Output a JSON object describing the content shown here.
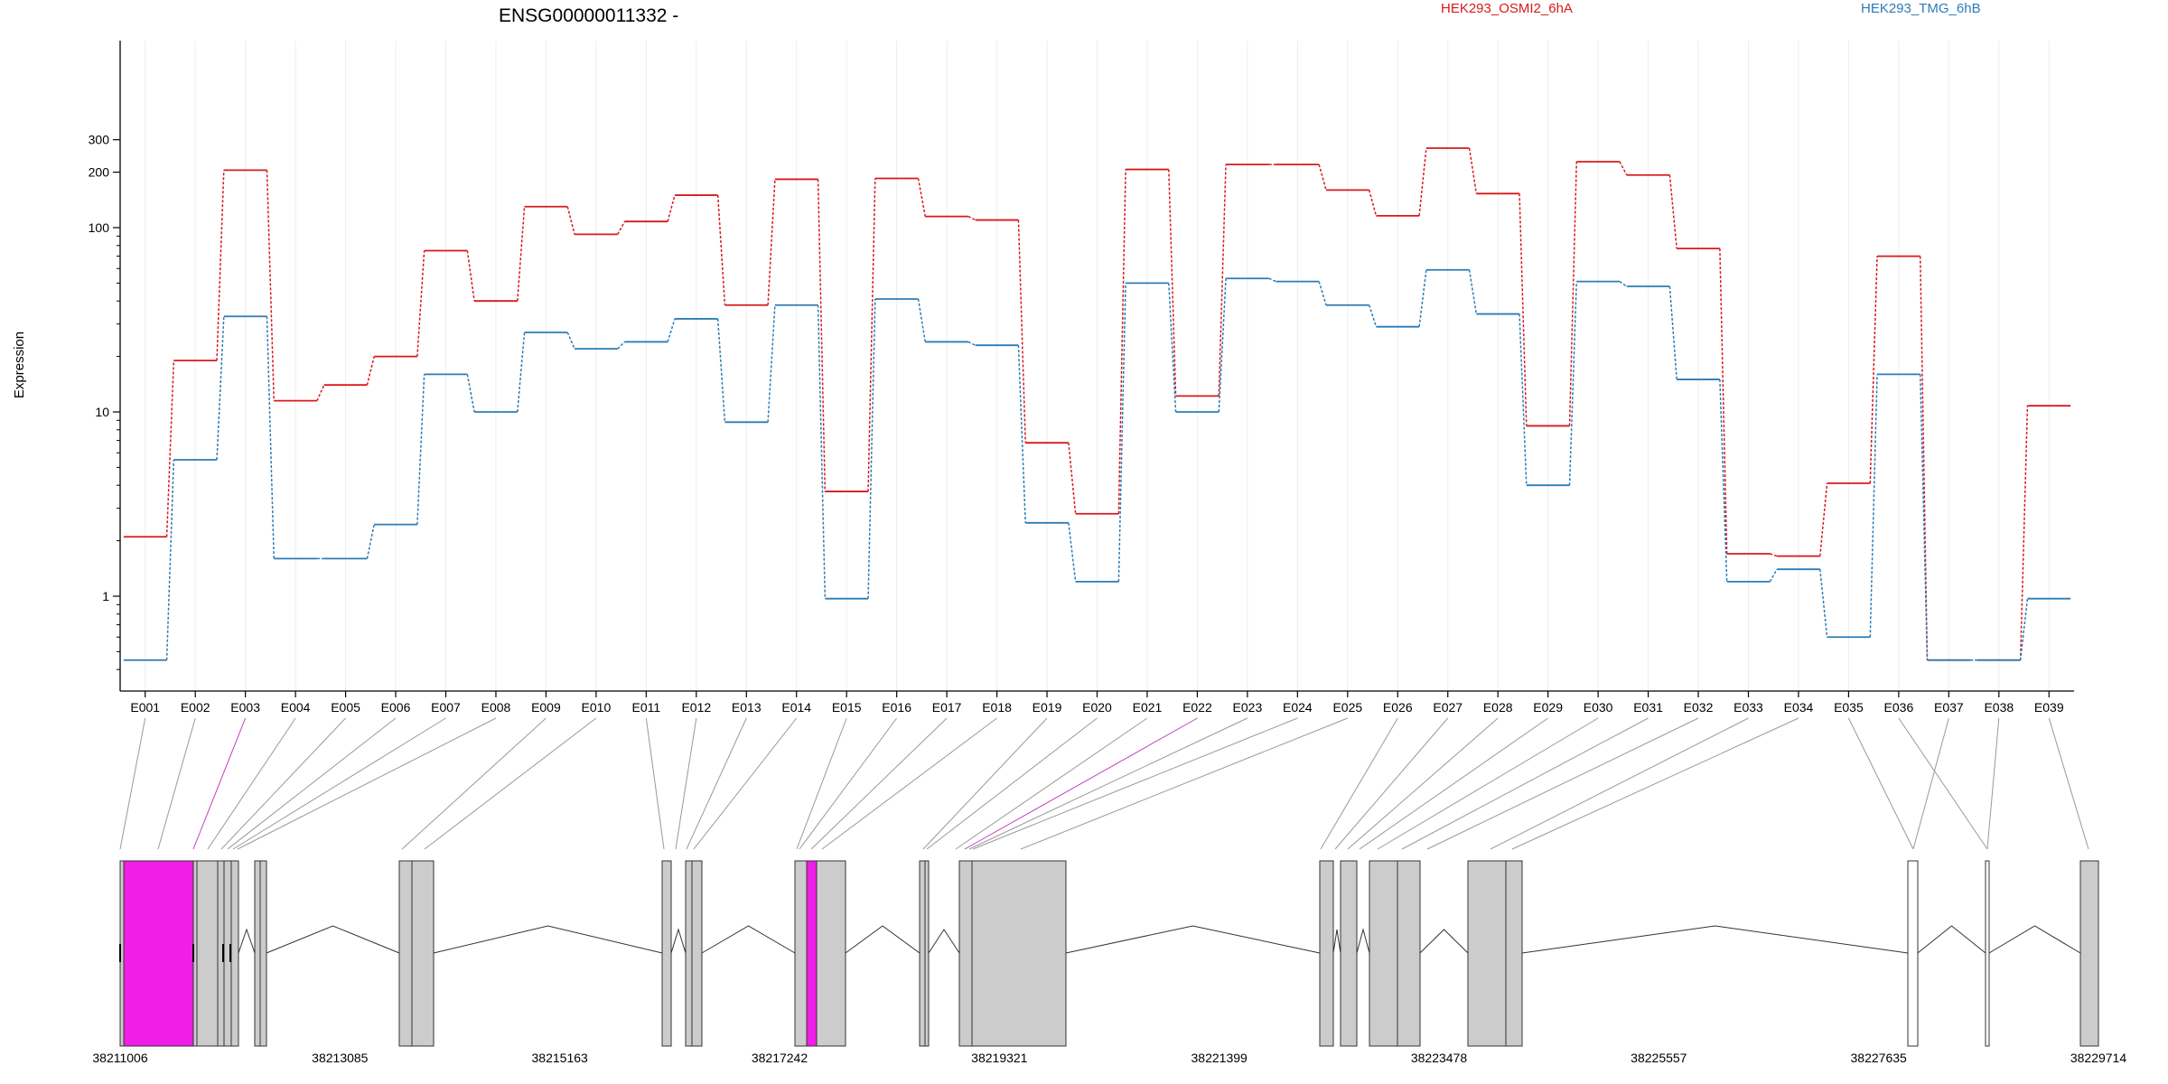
{
  "chart_data": {
    "type": "line",
    "title": "ENSG00000011332 -",
    "ylabel": "Expression",
    "y_scale": "log",
    "ylim": [
      0.4,
      380
    ],
    "yticks": [
      1,
      10,
      100,
      200,
      300
    ],
    "grid": "vertical",
    "legend_placement": "top-right",
    "categories": [
      "E001",
      "E002",
      "E003",
      "E004",
      "E005",
      "E006",
      "E007",
      "E008",
      "E009",
      "E010",
      "E011",
      "E012",
      "E013",
      "E014",
      "E015",
      "E016",
      "E017",
      "E018",
      "E019",
      "E020",
      "E021",
      "E022",
      "E023",
      "E024",
      "E025",
      "E026",
      "E027",
      "E028",
      "E029",
      "E030",
      "E031",
      "E032",
      "E033",
      "E034",
      "E035",
      "E036",
      "E037",
      "E038",
      "E039"
    ],
    "series": [
      {
        "name": "HEK293_OSMI2_6hA",
        "color": "#d7191c",
        "values": [
          2.1,
          19,
          205,
          11.5,
          14,
          20,
          75,
          40,
          130,
          92,
          108,
          150,
          38,
          183,
          3.7,
          185,
          115,
          110,
          6.8,
          2.8,
          207,
          12.2,
          220,
          220,
          160,
          116,
          270,
          153,
          8.4,
          228,
          193,
          77,
          1.7,
          1.65,
          4.1,
          70,
          0.45,
          0.45,
          10.8
        ]
      },
      {
        "name": "HEK293_TMG_6hB",
        "color": "#2c7bb6",
        "values": [
          0.45,
          5.5,
          33,
          1.6,
          1.6,
          2.45,
          16,
          10,
          27,
          22,
          24,
          32,
          8.8,
          38,
          0.97,
          41,
          24,
          23,
          2.5,
          1.2,
          50,
          10,
          53,
          51,
          38,
          29,
          59,
          34,
          4,
          51,
          48,
          15,
          1.2,
          1.4,
          0.6,
          16,
          0.45,
          0.45,
          0.97
        ]
      }
    ],
    "highlighted_exons": [
      "E003",
      "E022"
    ]
  },
  "gene_model": {
    "coordinates": [
      "38211006",
      "38213085",
      "38215163",
      "38217242",
      "38219321",
      "38221399",
      "38223478",
      "38225557",
      "38227635",
      "38229714"
    ],
    "exon_colors": {
      "normal": "#cccccc",
      "highlight": "#f01ee6",
      "none": "#ffffff"
    }
  }
}
